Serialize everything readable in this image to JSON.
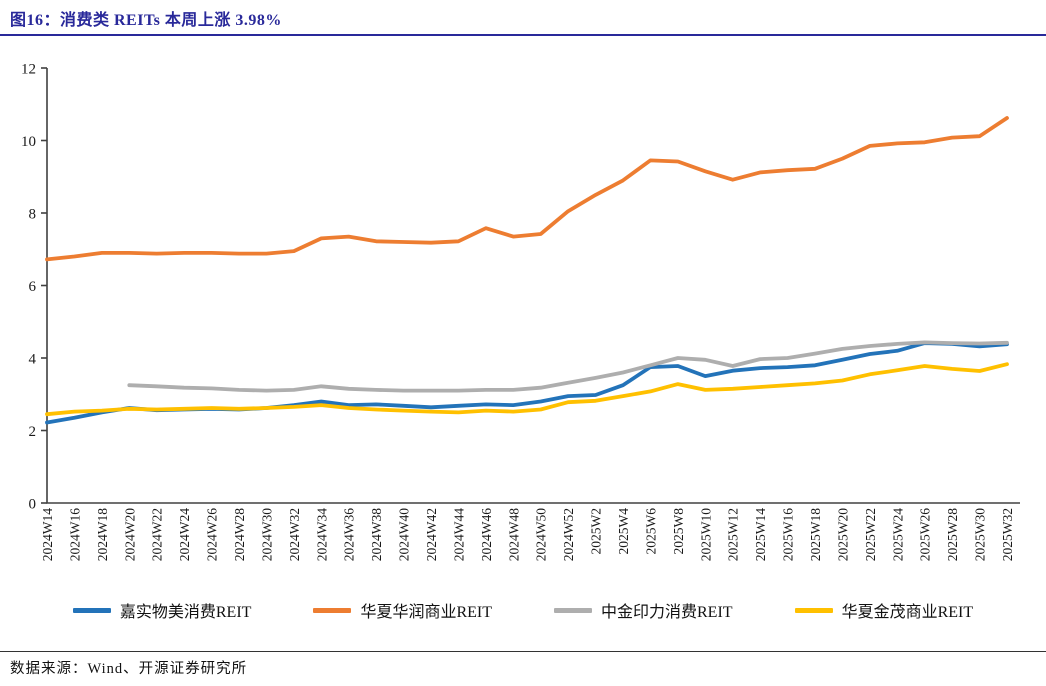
{
  "figure": {
    "title": "图16：消费类 REITs 本周上涨 3.98%",
    "source": "数据来源：Wind、开源证券研究所"
  },
  "colors": {
    "title_navy": "#29299A",
    "axis": "#404040",
    "footer_rule": "#333333"
  },
  "chart_data": {
    "type": "line",
    "categories": [
      "2024W14",
      "2024W16",
      "2024W18",
      "2024W20",
      "2024W22",
      "2024W24",
      "2024W26",
      "2024W28",
      "2024W30",
      "2024W32",
      "2024W34",
      "2024W36",
      "2024W38",
      "2024W40",
      "2024W42",
      "2024W44",
      "2024W46",
      "2024W48",
      "2024W50",
      "2024W52",
      "2025W2",
      "2025W4",
      "2025W6",
      "2025W8",
      "2025W10",
      "2025W12",
      "2025W14",
      "2025W16",
      "2025W18",
      "2025W20",
      "2025W22",
      "2025W24",
      "2025W26",
      "2025W28",
      "2025W30",
      "2025W32"
    ],
    "series": [
      {
        "name": "嘉实物美消费REIT",
        "color": "#2373B9",
        "values": [
          2.22,
          2.35,
          2.5,
          2.62,
          2.56,
          2.58,
          2.6,
          2.58,
          2.62,
          2.7,
          2.8,
          2.7,
          2.72,
          2.68,
          2.64,
          2.68,
          2.72,
          2.7,
          2.8,
          2.95,
          2.98,
          3.25,
          3.75,
          3.78,
          3.5,
          3.65,
          3.72,
          3.75,
          3.8,
          3.95,
          4.11,
          4.2,
          4.41,
          4.39,
          4.32,
          4.38
        ]
      },
      {
        "name": "华夏华润商业REIT",
        "color": "#ED7D31",
        "values": [
          6.72,
          6.8,
          6.9,
          6.9,
          6.88,
          6.9,
          6.9,
          6.88,
          6.88,
          6.95,
          7.3,
          7.35,
          7.22,
          7.2,
          7.18,
          7.22,
          7.58,
          7.35,
          7.42,
          8.05,
          8.5,
          8.9,
          9.45,
          9.42,
          9.15,
          8.92,
          9.12,
          9.18,
          9.22,
          9.5,
          9.85,
          9.92,
          9.95,
          10.08,
          10.12,
          10.62
        ]
      },
      {
        "name": "中金印力消费REIT",
        "color": "#AEAEAE",
        "values": [
          null,
          null,
          null,
          3.25,
          3.22,
          3.18,
          3.16,
          3.12,
          3.1,
          3.12,
          3.22,
          3.15,
          3.12,
          3.1,
          3.1,
          3.1,
          3.12,
          3.12,
          3.18,
          3.32,
          3.45,
          3.6,
          3.8,
          4.0,
          3.95,
          3.78,
          3.97,
          4.0,
          4.12,
          4.25,
          4.33,
          4.39,
          4.43,
          4.41,
          4.4,
          4.42
        ]
      },
      {
        "name": "华夏金茂商业REIT",
        "color": "#FFC000",
        "values": [
          2.45,
          2.52,
          2.55,
          2.6,
          2.58,
          2.6,
          2.62,
          2.6,
          2.62,
          2.65,
          2.7,
          2.62,
          2.58,
          2.55,
          2.52,
          2.5,
          2.55,
          2.52,
          2.58,
          2.78,
          2.82,
          2.95,
          3.08,
          3.28,
          3.12,
          3.15,
          3.2,
          3.25,
          3.3,
          3.38,
          3.55,
          3.66,
          3.78,
          3.7,
          3.64,
          3.83
        ]
      }
    ],
    "title": "消费类 REITs 本周上涨 3.98%",
    "xlabel": "",
    "ylabel": "",
    "ylim": [
      0,
      12
    ],
    "yticks": [
      0,
      2,
      4,
      6,
      8,
      10,
      12
    ],
    "grid": false,
    "legend_position": "bottom"
  }
}
